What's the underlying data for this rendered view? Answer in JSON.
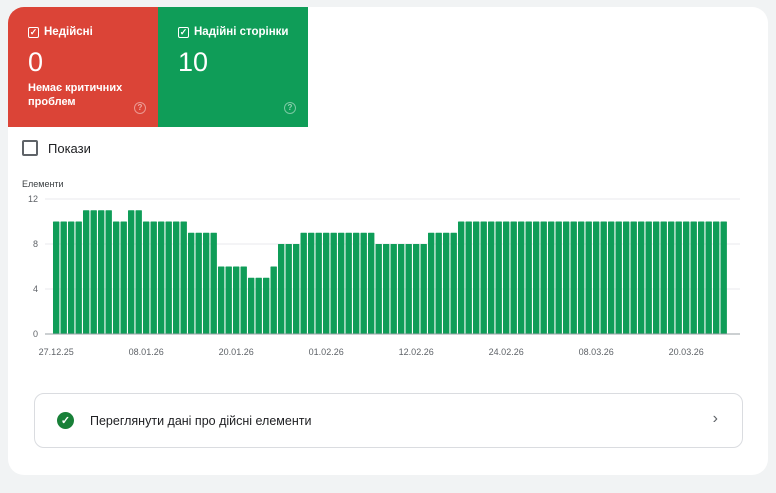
{
  "tiles": [
    {
      "label": "Недійсні",
      "value": "0",
      "subtitle": "Немає критичних проблем",
      "checked": true,
      "color": "#db4437",
      "icon": "help-icon"
    },
    {
      "label": "Надійні сторінки",
      "value": "10",
      "checked": true,
      "color": "#0f9d58",
      "icon": "help-icon"
    }
  ],
  "impressions_toggle": {
    "label": "Покази",
    "checked": false
  },
  "chart_data": {
    "type": "bar",
    "ylabel": "Елементи",
    "ylim": [
      0,
      12
    ],
    "yticks": [
      "0",
      "4",
      "8",
      "12"
    ],
    "grid": true,
    "color": "#0f9d58",
    "start_date": "27.12.25",
    "xtick_labels": [
      "27.12.25",
      "08.01.26",
      "20.01.26",
      "01.02.26",
      "12.02.26",
      "24.02.26",
      "08.03.26",
      "20.03.26"
    ],
    "values": [
      10,
      10,
      10,
      10,
      11,
      11,
      11,
      11,
      10,
      10,
      11,
      11,
      10,
      10,
      10,
      10,
      10,
      10,
      9,
      9,
      9,
      9,
      6,
      6,
      6,
      6,
      5,
      5,
      5,
      6,
      8,
      8,
      8,
      9,
      9,
      9,
      9,
      9,
      9,
      9,
      9,
      9,
      9,
      8,
      8,
      8,
      8,
      8,
      8,
      8,
      9,
      9,
      9,
      9,
      10,
      10,
      10,
      10,
      10,
      10,
      10,
      10,
      10,
      10,
      10,
      10,
      10,
      10,
      10,
      10,
      10,
      10,
      10,
      10,
      10,
      10,
      10,
      10,
      10,
      10,
      10,
      10,
      10,
      10,
      10,
      10,
      10,
      10,
      10,
      10
    ]
  },
  "valid_row": {
    "label": "Переглянути дані про дійсні елементи",
    "icon": "check-circle-icon",
    "chevron": "›"
  }
}
